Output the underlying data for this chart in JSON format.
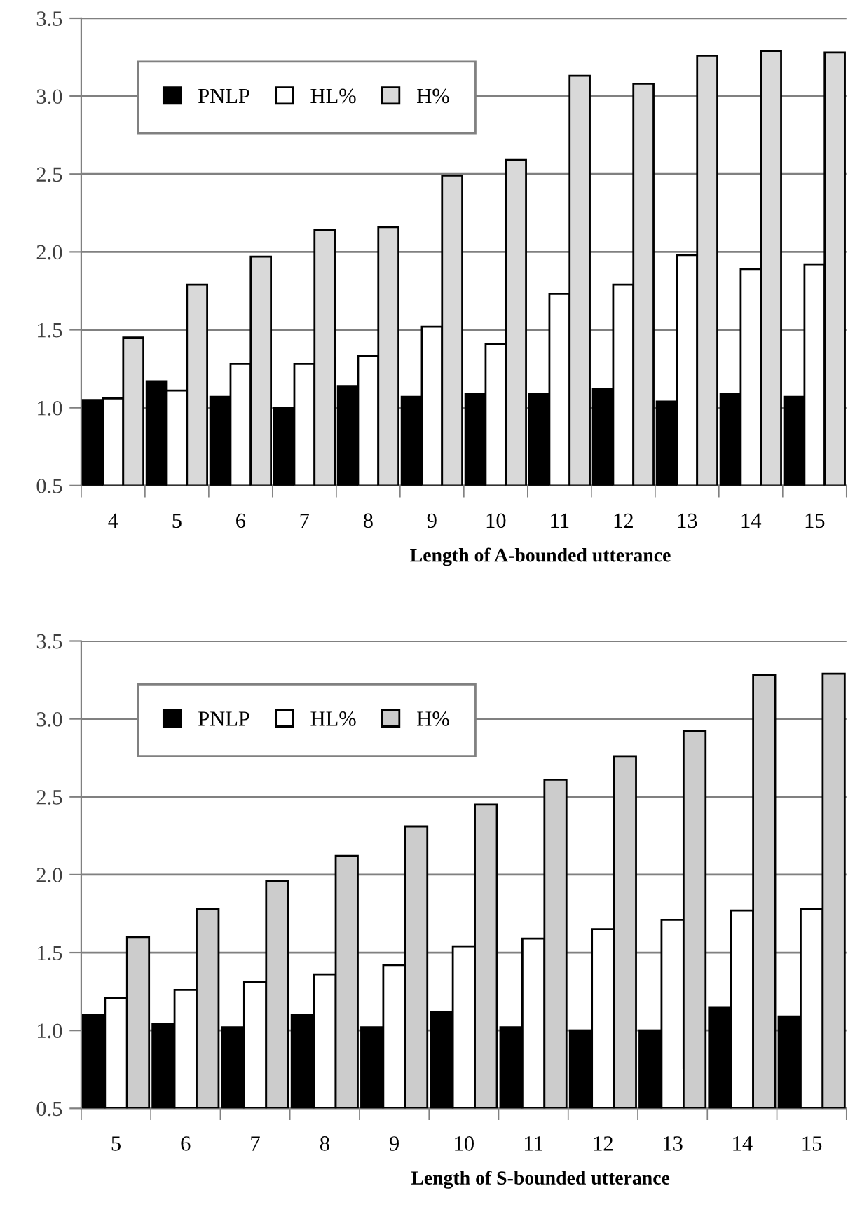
{
  "chart_data": [
    {
      "type": "bar",
      "xlabel": "Length of A-bounded utterance",
      "categories": [
        "4",
        "5",
        "6",
        "7",
        "8",
        "9",
        "10",
        "11",
        "12",
        "13",
        "14",
        "15"
      ],
      "series": [
        {
          "name": "PNLP",
          "color": "#000000",
          "values": [
            1.05,
            1.17,
            1.07,
            1.0,
            1.14,
            1.07,
            1.09,
            1.09,
            1.12,
            1.04,
            1.09,
            1.07
          ]
        },
        {
          "name": "HL%",
          "color": "#ffffff",
          "values": [
            1.06,
            1.11,
            1.28,
            1.28,
            1.33,
            1.52,
            1.41,
            1.73,
            1.79,
            1.98,
            1.89,
            1.92
          ]
        },
        {
          "name": "H%",
          "color": "#d9d9d9",
          "values": [
            1.45,
            1.79,
            1.97,
            2.14,
            2.16,
            2.49,
            2.59,
            3.13,
            3.08,
            3.26,
            3.29,
            3.28
          ]
        }
      ],
      "ylim": [
        0.5,
        3.5
      ],
      "yticks": [
        {
          "value": 0.5,
          "label": "0.5"
        },
        {
          "value": 1.0,
          "label": "1.0"
        },
        {
          "value": 1.5,
          "label": "1.5"
        },
        {
          "value": 2.0,
          "label": "2.0"
        },
        {
          "value": 2.5,
          "label": "2.5"
        },
        {
          "value": 3.0,
          "label": "3.0"
        },
        {
          "value": 3.5,
          "label": "3.5"
        }
      ],
      "grid": "y",
      "legend": "top left"
    },
    {
      "type": "bar",
      "xlabel": "Length of S-bounded utterance",
      "categories": [
        "5",
        "6",
        "7",
        "8",
        "9",
        "10",
        "11",
        "12",
        "13",
        "14",
        "15"
      ],
      "series": [
        {
          "name": "PNLP",
          "color": "#000000",
          "values": [
            1.1,
            1.04,
            1.02,
            1.1,
            1.02,
            1.12,
            1.02,
            1.0,
            1.0,
            1.15,
            1.09
          ]
        },
        {
          "name": "HL%",
          "color": "#ffffff",
          "values": [
            1.21,
            1.26,
            1.31,
            1.36,
            1.42,
            1.54,
            1.59,
            1.65,
            1.71,
            1.77,
            1.78
          ]
        },
        {
          "name": "H%",
          "color": "#cccccc",
          "values": [
            1.6,
            1.78,
            1.96,
            2.12,
            2.31,
            2.45,
            2.61,
            2.76,
            2.92,
            3.28,
            3.29
          ]
        }
      ],
      "ylim": [
        0.5,
        3.5
      ],
      "yticks": [
        {
          "value": 0.5,
          "label": "0.5"
        },
        {
          "value": 1.0,
          "label": "1.0"
        },
        {
          "value": 1.5,
          "label": "1.5"
        },
        {
          "value": 2.0,
          "label": "2.0"
        },
        {
          "value": 2.5,
          "label": "2.5"
        },
        {
          "value": 3.0,
          "label": "3.0"
        },
        {
          "value": 3.5,
          "label": "3.5"
        }
      ],
      "grid": "y",
      "legend": "top left"
    }
  ]
}
